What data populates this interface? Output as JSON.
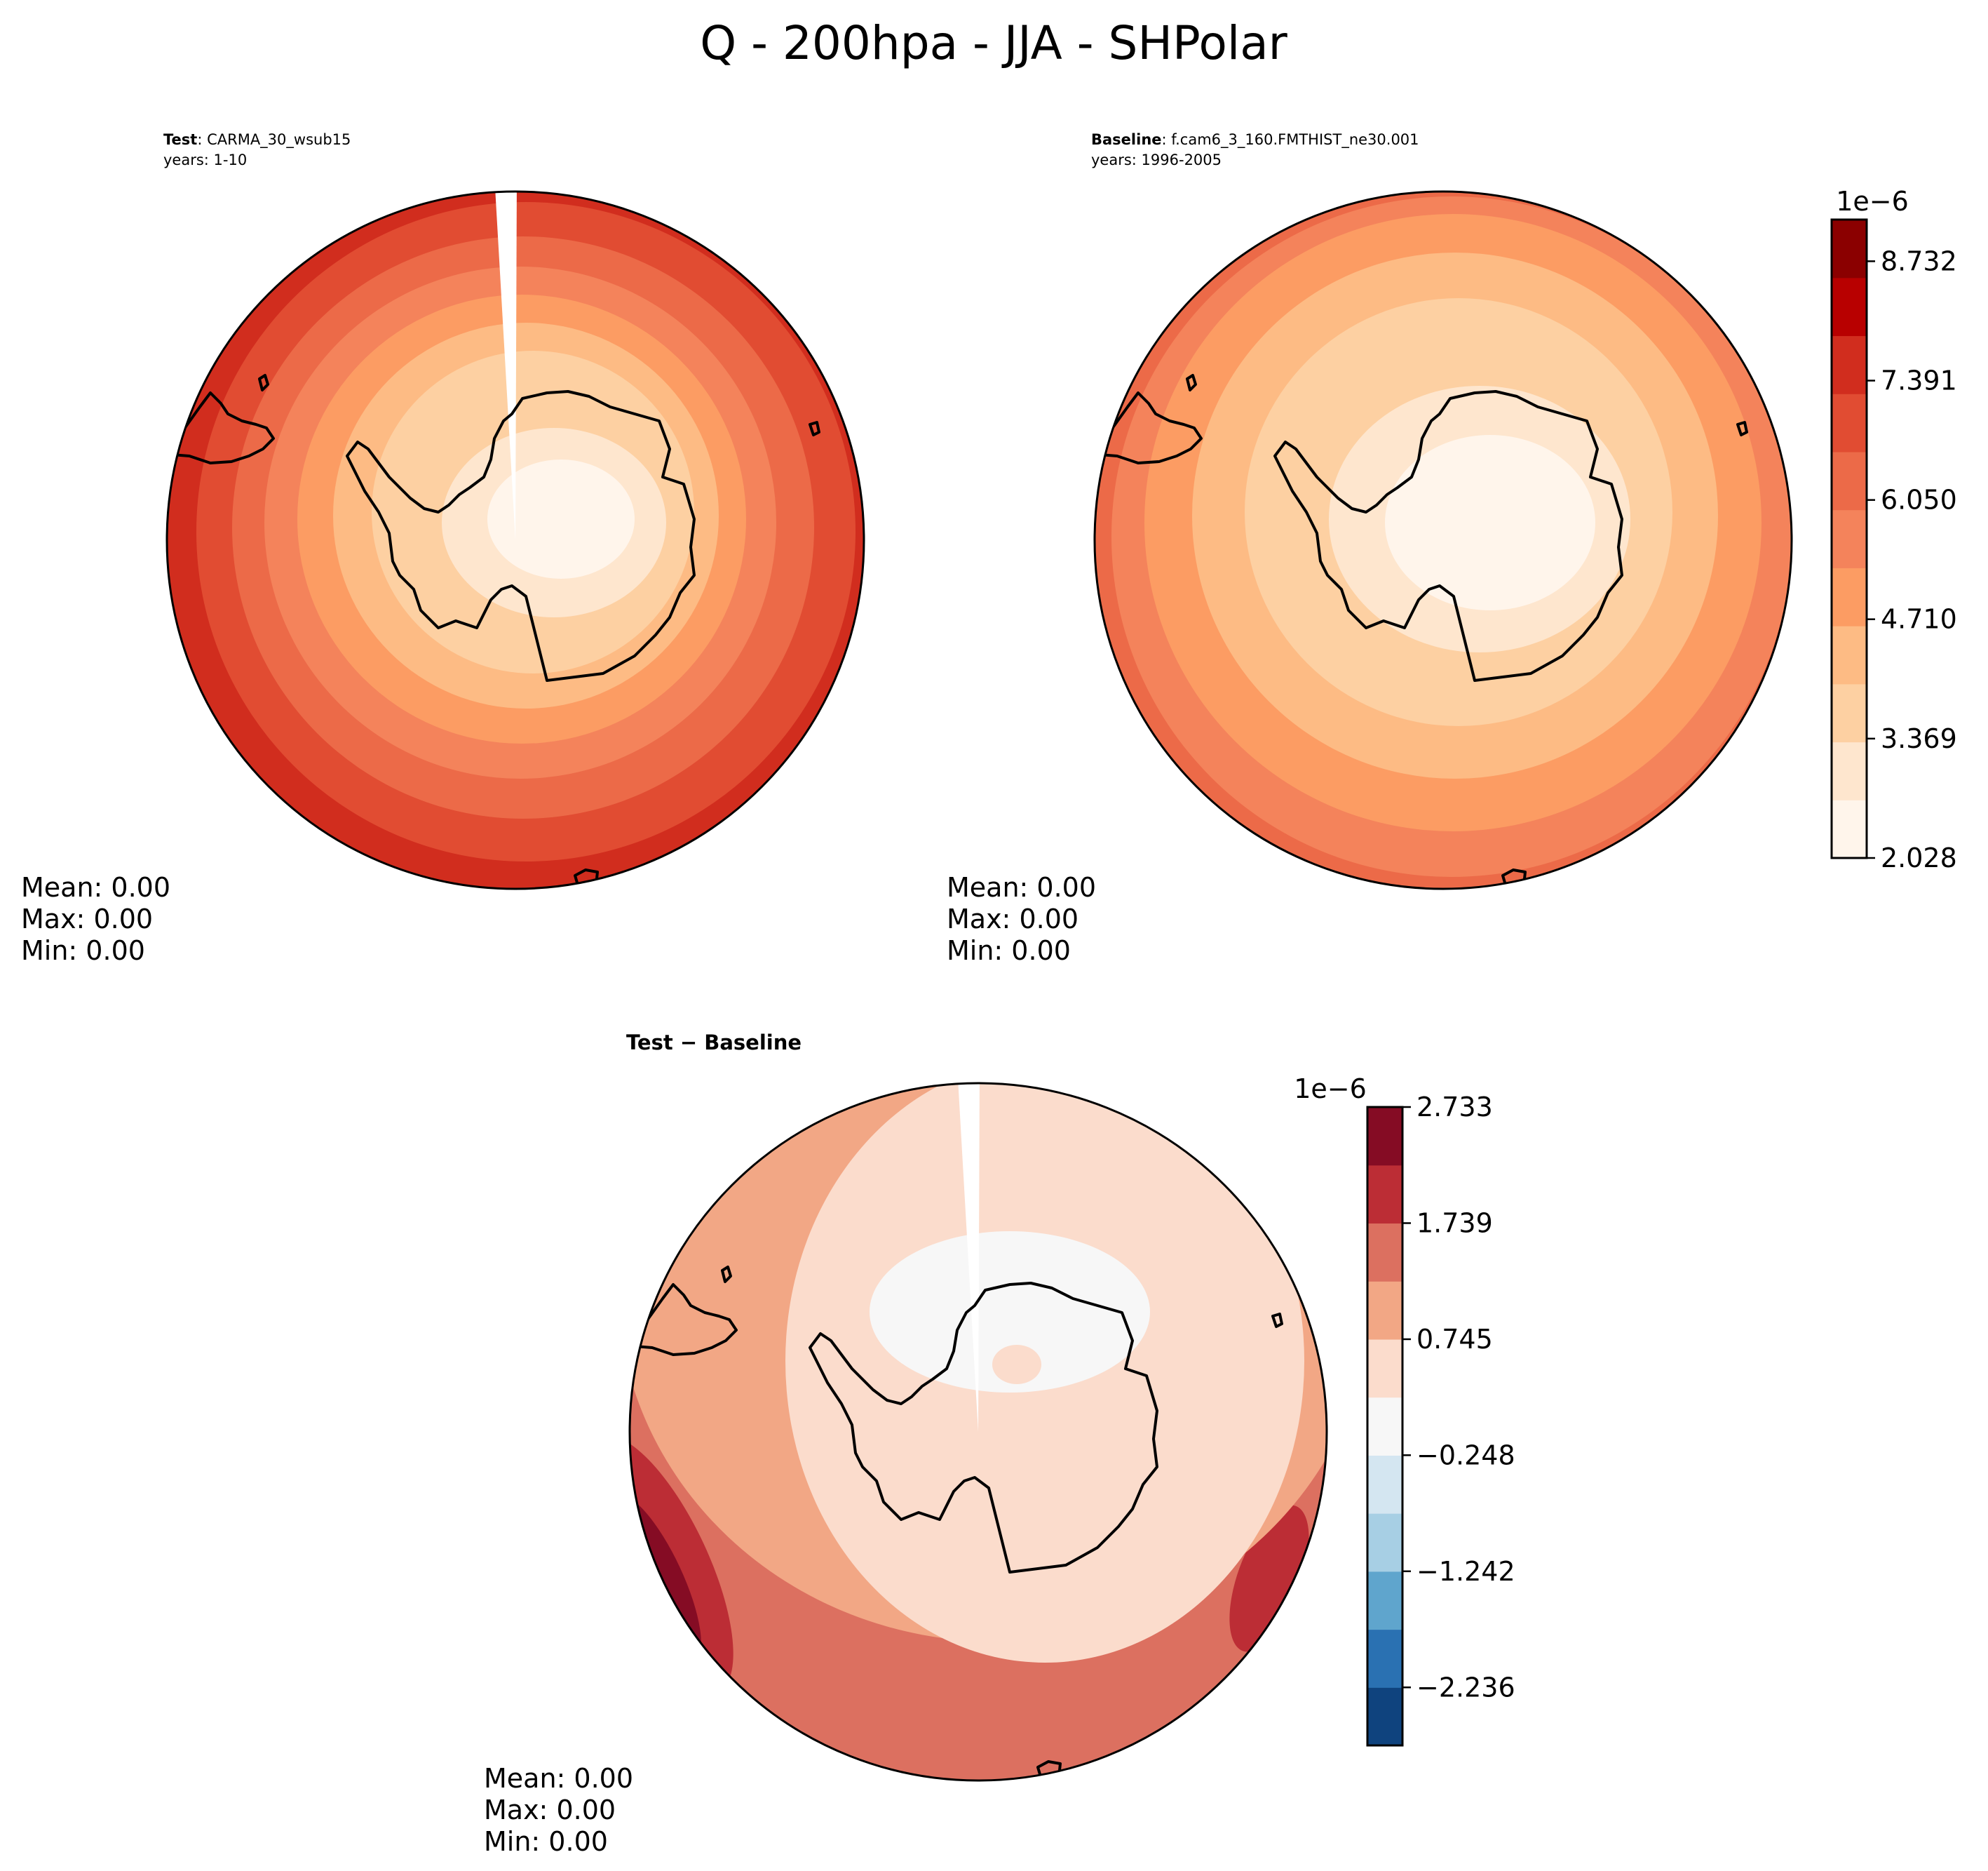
{
  "figure_title": "Q - 200hpa - JJA - SHPolar",
  "panels": [
    {
      "id": "test",
      "label_bold": "Test",
      "label_rest": ": CARMA_30_wsub15",
      "years": "years: 1-10",
      "stats": [
        "Mean:  0.00",
        "Max:  0.00",
        "Min:  0.00"
      ]
    },
    {
      "id": "baseline",
      "label_bold": "Baseline",
      "label_rest": ": f.cam6_3_160.FMTHIST_ne30.001",
      "years": "years: 1996-2005",
      "stats": [
        "Mean:  0.00",
        "Max:  0.00",
        "Min:  0.00"
      ]
    },
    {
      "id": "diff",
      "label_bold": "Test − Baseline",
      "stats": [
        "Mean:  0.00",
        "Max:  0.00",
        "Min:  0.00"
      ]
    }
  ],
  "colorbars": [
    {
      "id": "main",
      "multiplier": "1e−6",
      "ticks": [
        "2.028",
        "3.369",
        "4.710",
        "6.050",
        "7.391",
        "8.732"
      ],
      "tick_values": [
        2.028,
        3.369,
        4.71,
        6.05,
        7.391,
        8.732
      ],
      "range": [
        2.028,
        9.2
      ],
      "colors": [
        "#fff5eb",
        "#fee6ce",
        "#fdd0a2",
        "#fdbb84",
        "#fc9c63",
        "#f4835b",
        "#ec6a48",
        "#e14c32",
        "#d12d1e",
        "#b80000",
        "#8b0000"
      ]
    },
    {
      "id": "diff",
      "multiplier": "1e−6",
      "ticks": [
        "2.733",
        "1.739",
        "0.745",
        "−0.248",
        "−1.242",
        "−2.236"
      ],
      "tick_values": [
        2.733,
        1.739,
        0.745,
        -0.248,
        -1.242,
        -2.236
      ],
      "range": [
        -2.733,
        2.733
      ],
      "colors": [
        "#0f437e",
        "#2a71b2",
        "#5fa5cd",
        "#a7cfe4",
        "#d4e6f1",
        "#f7f7f7",
        "#fbdccc",
        "#f2a785",
        "#dc7060",
        "#bc2d35",
        "#850c24"
      ]
    }
  ],
  "chart_data": [
    {
      "type": "heatmap",
      "title": "Test: CARMA_30_wsub15",
      "subtitle": "years: 1-10",
      "projection": "south polar stereographic",
      "variable": "Q",
      "level": "200hpa",
      "season": "JJA",
      "region": "SHPolar",
      "value_range": [
        2.028e-06,
        9.2e-06
      ],
      "pattern": "concentric contours; minimum (~2.0e-6) over East Antarctica, rising to ~9e-6 at the outer rim, highest on the left (Indian/Atlantic) edge",
      "stats": {
        "mean": "0.00",
        "max": "0.00",
        "min": "0.00"
      }
    },
    {
      "type": "heatmap",
      "title": "Baseline: f.cam6_3_160.FMTHIST_ne30.001",
      "subtitle": "years: 1996-2005",
      "projection": "south polar stereographic",
      "variable": "Q",
      "level": "200hpa",
      "season": "JJA",
      "region": "SHPolar",
      "value_range": [
        2.028e-06,
        9.2e-06
      ],
      "pattern": "concentric contours; minimum over East Antarctica, ~6-7e-6 at the outer rim",
      "stats": {
        "mean": "0.00",
        "max": "0.00",
        "min": "0.00"
      }
    },
    {
      "type": "heatmap",
      "title": "Test − Baseline",
      "projection": "south polar stereographic",
      "value_range": [
        -2.733e-06,
        2.733e-06
      ],
      "pattern": "near zero (-0.25e-6 to 0.25e-6) over interior Antarctica, 0.25-0.75e-6 over most of the continent and ocean, up to ~2.7e-6 on the left outer edge",
      "stats": {
        "mean": "0.00",
        "max": "0.00",
        "min": "0.00"
      }
    }
  ]
}
